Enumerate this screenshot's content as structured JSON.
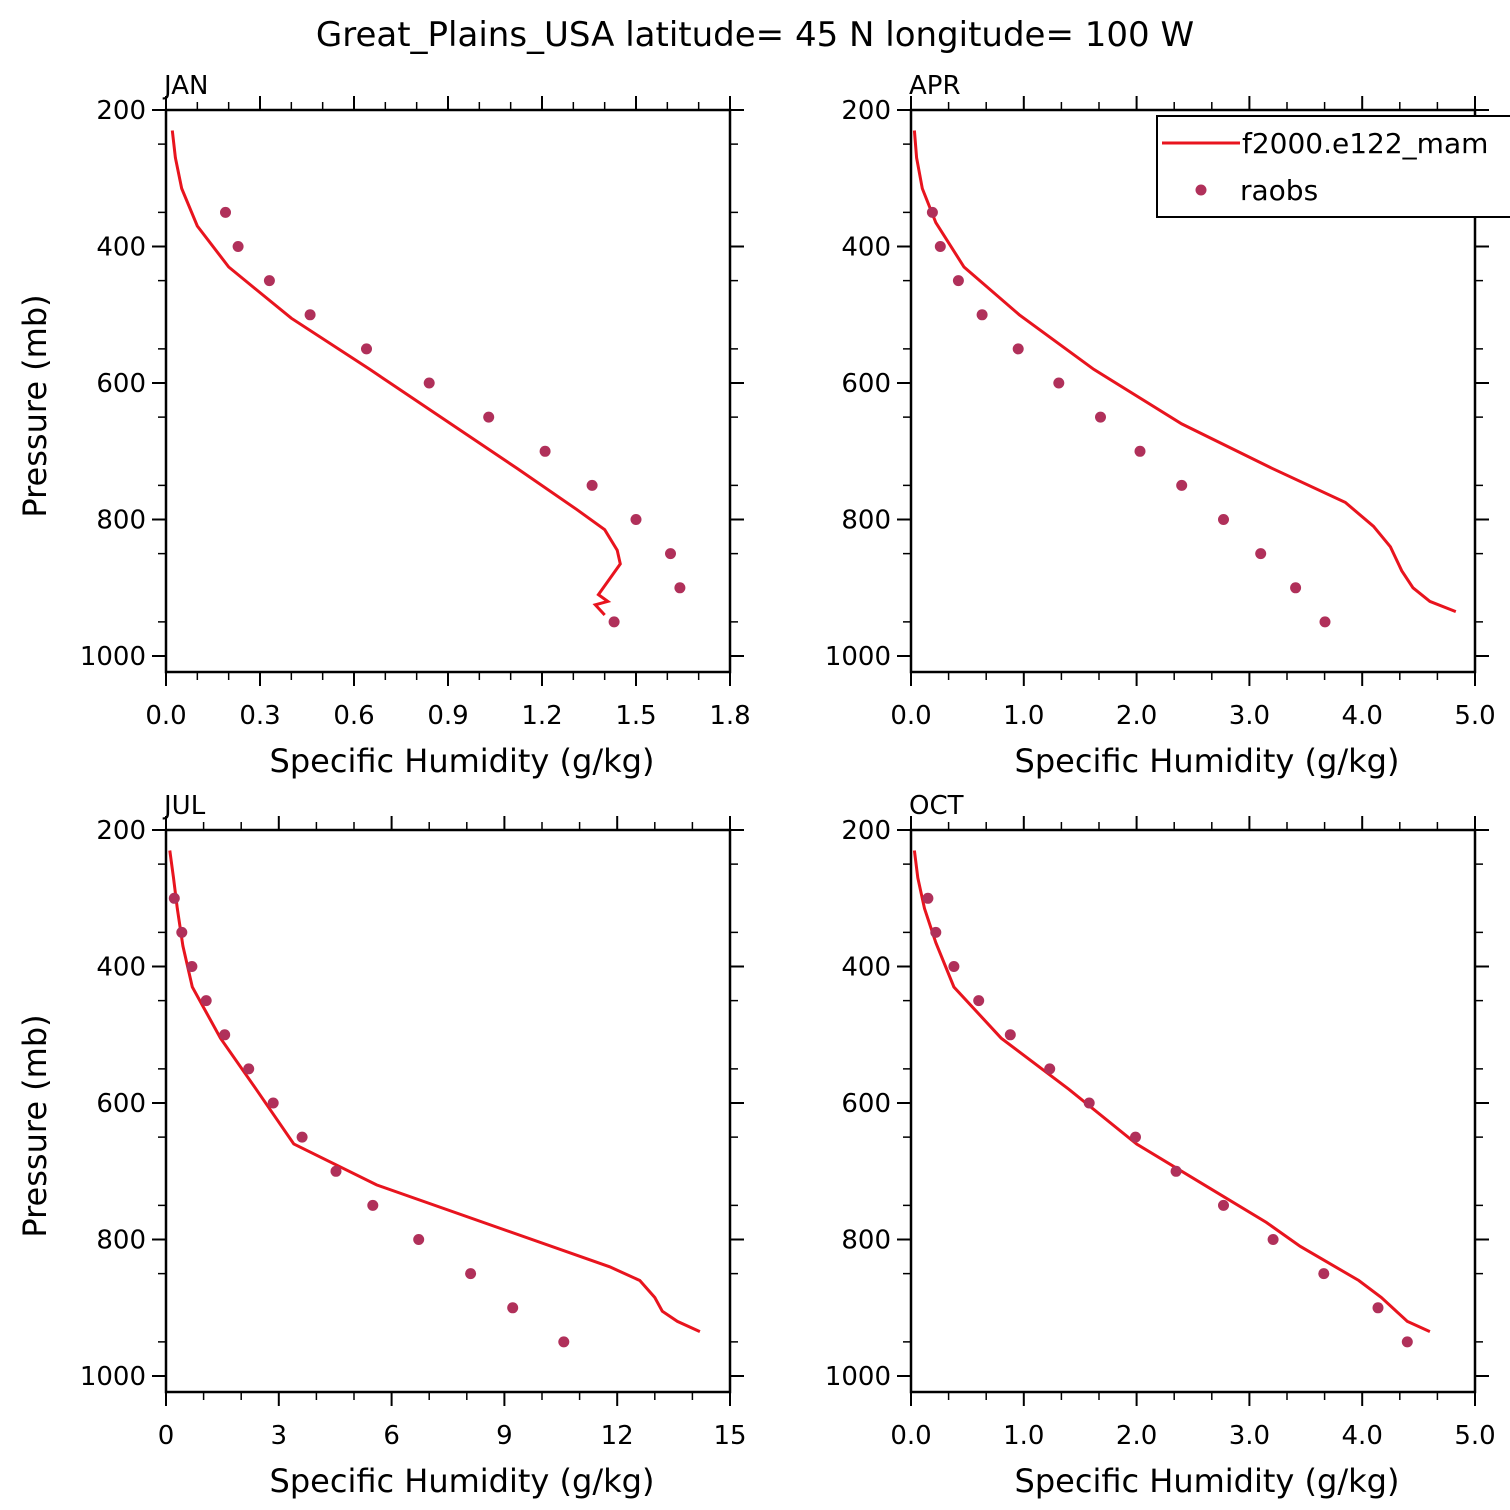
{
  "figure_title": "Great_Plains_USA  latitude= 45 N longitude= 100 W",
  "legend": {
    "model_label": "f2000.e122_mam",
    "obs_label": "raobs",
    "model_color": "#e8141e",
    "obs_color": "#b0305a"
  },
  "chart_data": [
    {
      "type": "line",
      "panel": "JAN",
      "xlabel": "Specific Humidity (g/kg)",
      "ylabel": "Pressure (mb)",
      "xlim": [
        0,
        1.8
      ],
      "ylim": [
        1000,
        200
      ],
      "x_ticks": [
        0,
        0.3,
        0.6,
        0.9,
        1.2,
        1.5,
        1.8
      ],
      "x_tick_labels": [
        "0.0",
        "0.3",
        "0.6",
        "0.9",
        "1.2",
        "1.5",
        "1.8"
      ],
      "y_ticks": [
        200,
        400,
        600,
        800,
        1000
      ],
      "y_tick_labels": [
        "200",
        "400",
        "600",
        "800",
        "1000"
      ],
      "series": [
        {
          "name": "f2000.e122_mam",
          "style": "line",
          "x": [
            0.02,
            0.03,
            0.05,
            0.1,
            0.2,
            0.28,
            0.4,
            0.65,
            1.12,
            1.31,
            1.4,
            1.44,
            1.45,
            1.38,
            1.41,
            1.37,
            1.4
          ],
          "y": [
            230,
            270,
            315,
            370,
            430,
            460,
            505,
            580,
            725,
            785,
            815,
            845,
            865,
            910,
            920,
            925,
            940
          ]
        },
        {
          "name": "raobs",
          "style": "scatter",
          "x": [
            0.19,
            0.23,
            0.33,
            0.46,
            0.64,
            0.84,
            1.03,
            1.21,
            1.36,
            1.5,
            1.61,
            1.64,
            1.43
          ],
          "y": [
            350,
            400,
            450,
            500,
            550,
            600,
            650,
            700,
            750,
            800,
            850,
            900,
            950
          ]
        }
      ]
    },
    {
      "type": "line",
      "panel": "APR",
      "xlabel": "Specific Humidity (g/kg)",
      "ylabel": "",
      "xlim": [
        0,
        5
      ],
      "ylim": [
        1000,
        200
      ],
      "x_ticks": [
        0,
        1,
        2,
        3,
        4,
        5
      ],
      "x_tick_labels": [
        "0.0",
        "1.0",
        "2.0",
        "3.0",
        "4.0",
        "5.0"
      ],
      "y_ticks": [
        200,
        400,
        600,
        800,
        1000
      ],
      "y_tick_labels": [
        "200",
        "400",
        "600",
        "800",
        "1000"
      ],
      "series": [
        {
          "name": "f2000.e122_mam",
          "style": "line",
          "x": [
            0.03,
            0.05,
            0.1,
            0.22,
            0.47,
            0.96,
            1.62,
            2.4,
            3.2,
            3.85,
            4.1,
            4.25,
            4.35,
            4.45,
            4.6,
            4.83
          ],
          "y": [
            230,
            270,
            315,
            365,
            430,
            500,
            580,
            660,
            725,
            775,
            810,
            840,
            875,
            900,
            920,
            935
          ]
        },
        {
          "name": "raobs",
          "style": "scatter",
          "x": [
            0.19,
            0.26,
            0.42,
            0.63,
            0.95,
            1.31,
            1.68,
            2.03,
            2.4,
            2.77,
            3.1,
            3.41,
            3.67
          ],
          "y": [
            350,
            400,
            450,
            500,
            550,
            600,
            650,
            700,
            750,
            800,
            850,
            900,
            950
          ]
        }
      ]
    },
    {
      "type": "line",
      "panel": "JUL",
      "xlabel": "Specific Humidity (g/kg)",
      "ylabel": "Pressure (mb)",
      "xlim": [
        0,
        15
      ],
      "ylim": [
        1000,
        200
      ],
      "x_ticks": [
        0,
        3,
        6,
        9,
        12,
        15
      ],
      "x_tick_labels": [
        "0",
        "3",
        "6",
        "9",
        "12",
        "15"
      ],
      "y_ticks": [
        200,
        400,
        600,
        800,
        1000
      ],
      "y_tick_labels": [
        "200",
        "400",
        "600",
        "800",
        "1000"
      ],
      "series": [
        {
          "name": "f2000.e122_mam",
          "style": "line",
          "x": [
            0.1,
            0.2,
            0.3,
            0.45,
            0.7,
            1.0,
            1.45,
            2.4,
            3.4,
            5.6,
            11.8,
            12.6,
            13.0,
            13.2,
            13.6,
            14.2
          ],
          "y": [
            230,
            270,
            315,
            370,
            430,
            460,
            505,
            580,
            660,
            720,
            840,
            860,
            885,
            905,
            920,
            935
          ]
        },
        {
          "name": "raobs",
          "style": "scatter",
          "x": [
            0.22,
            0.42,
            0.69,
            1.07,
            1.56,
            2.2,
            2.85,
            3.62,
            4.52,
            5.5,
            6.72,
            8.1,
            9.22,
            10.58
          ],
          "y": [
            300,
            350,
            400,
            450,
            500,
            550,
            600,
            650,
            700,
            750,
            800,
            850,
            900,
            950
          ]
        }
      ]
    },
    {
      "type": "line",
      "panel": "OCT",
      "xlabel": "Specific Humidity (g/kg)",
      "ylabel": "",
      "xlim": [
        0,
        5
      ],
      "ylim": [
        1000,
        200
      ],
      "x_ticks": [
        0,
        1,
        2,
        3,
        4,
        5
      ],
      "x_tick_labels": [
        "0.0",
        "1.0",
        "2.0",
        "3.0",
        "4.0",
        "5.0"
      ],
      "y_ticks": [
        200,
        400,
        600,
        800,
        1000
      ],
      "y_tick_labels": [
        "200",
        "400",
        "600",
        "800",
        "1000"
      ],
      "series": [
        {
          "name": "f2000.e122_mam",
          "style": "line",
          "x": [
            0.03,
            0.06,
            0.12,
            0.22,
            0.38,
            0.8,
            1.4,
            2.0,
            2.65,
            3.15,
            3.45,
            3.97,
            4.17,
            4.4,
            4.6
          ],
          "y": [
            230,
            270,
            315,
            365,
            430,
            505,
            580,
            660,
            725,
            775,
            810,
            860,
            885,
            920,
            935
          ]
        },
        {
          "name": "raobs",
          "style": "scatter",
          "x": [
            0.15,
            0.22,
            0.38,
            0.6,
            0.88,
            1.23,
            1.58,
            1.99,
            2.35,
            2.77,
            3.21,
            3.66,
            4.14,
            4.4
          ],
          "y": [
            300,
            350,
            400,
            450,
            500,
            550,
            600,
            650,
            700,
            750,
            800,
            850,
            900,
            950
          ]
        }
      ]
    }
  ]
}
